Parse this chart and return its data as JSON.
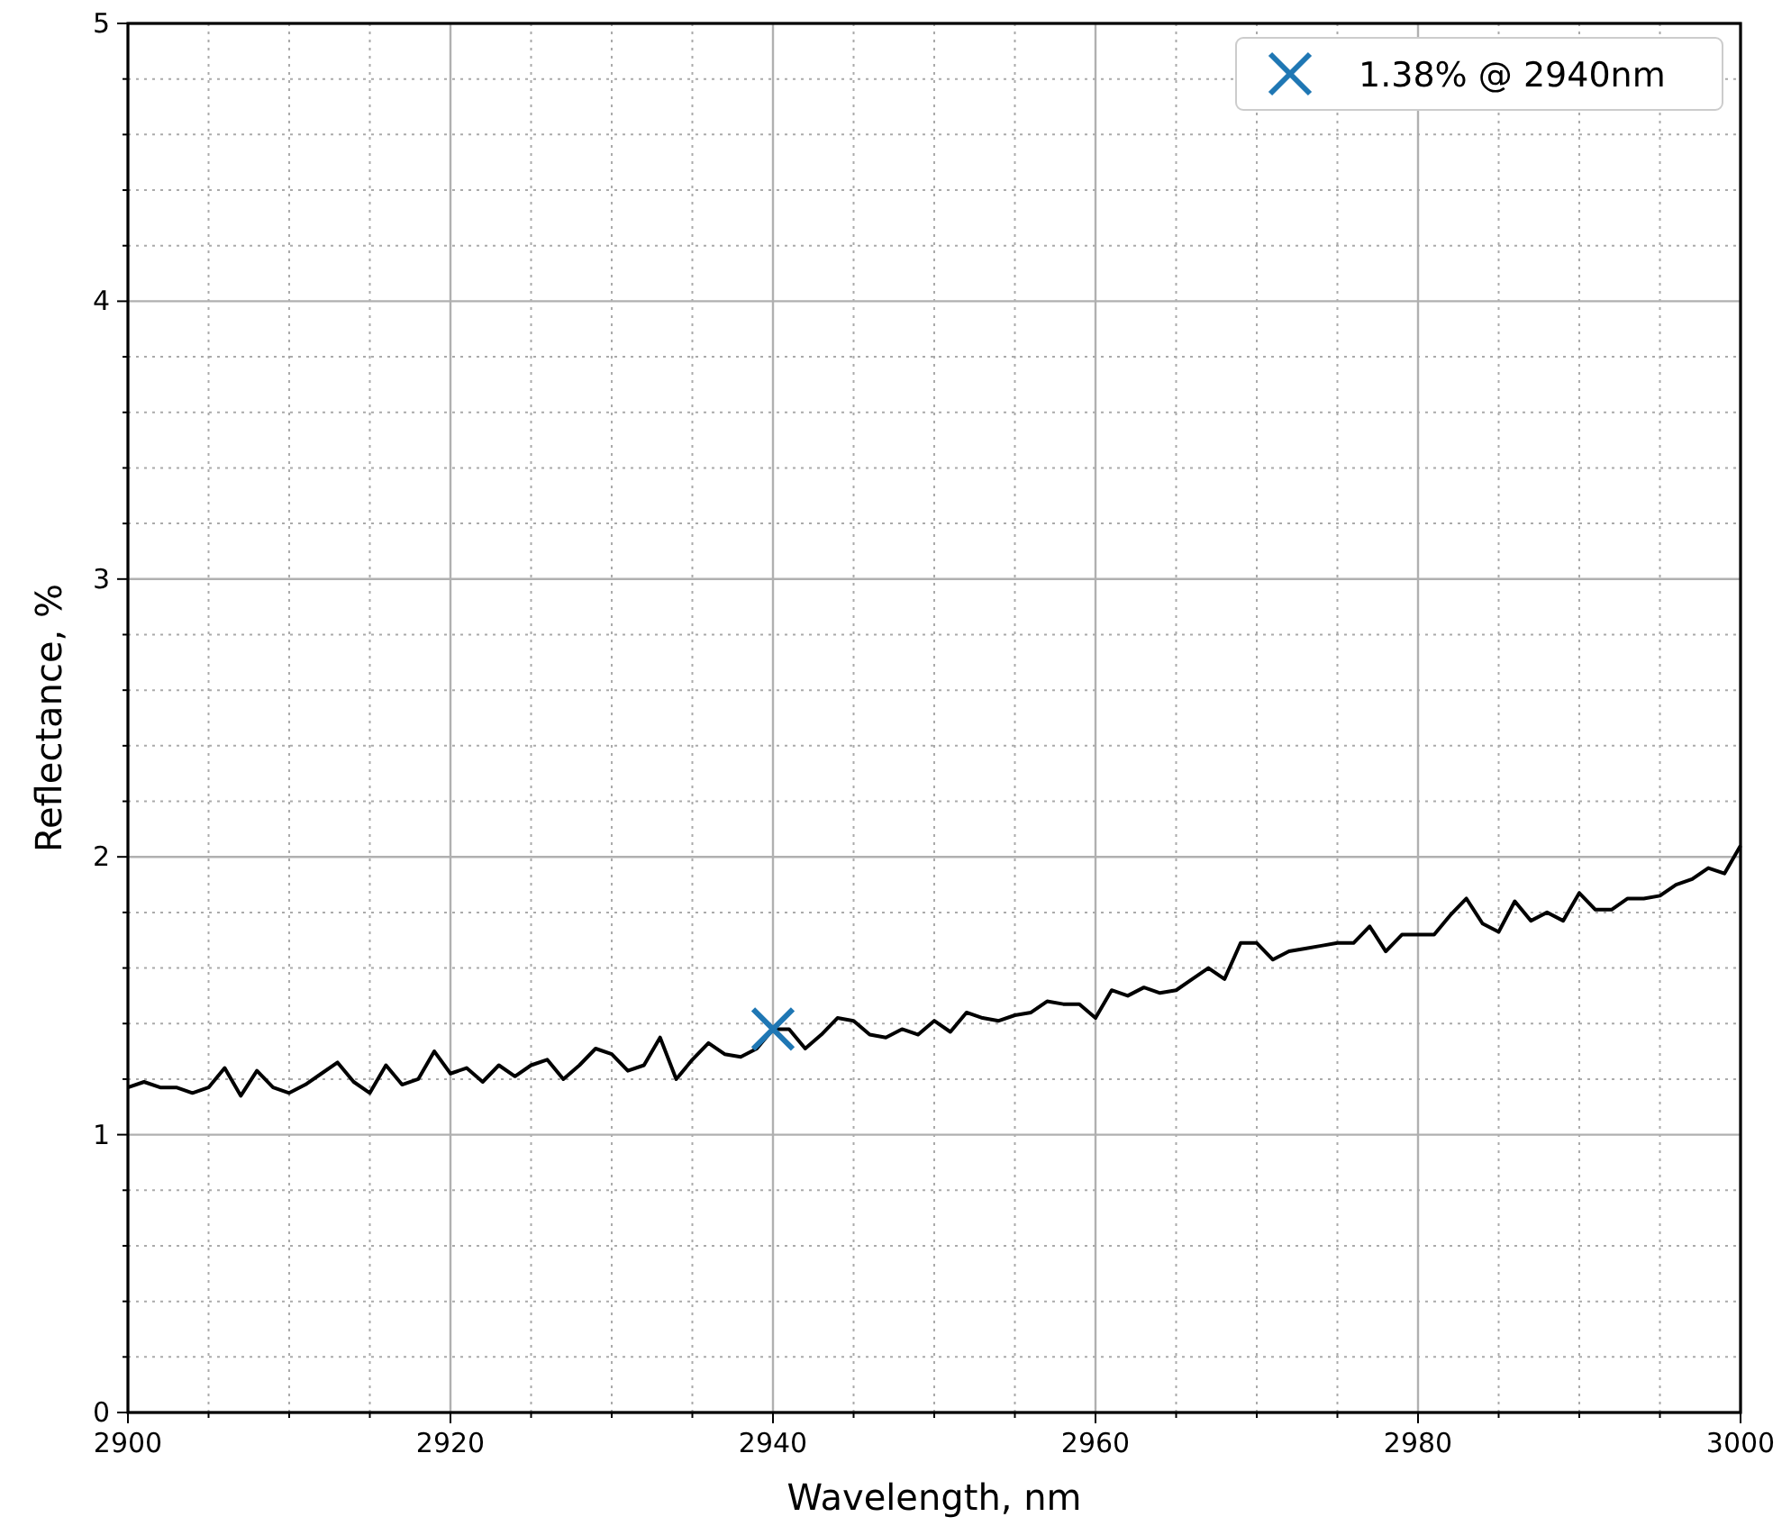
{
  "chart_data": {
    "type": "line",
    "xlabel": "Wavelength, nm",
    "ylabel": "Reflectance, %",
    "x": [
      2900,
      2901,
      2902,
      2903,
      2904,
      2905,
      2906,
      2907,
      2908,
      2909,
      2910,
      2911,
      2912,
      2913,
      2914,
      2915,
      2916,
      2917,
      2918,
      2919,
      2920,
      2921,
      2922,
      2923,
      2924,
      2925,
      2926,
      2927,
      2928,
      2929,
      2930,
      2931,
      2932,
      2933,
      2934,
      2935,
      2936,
      2937,
      2938,
      2939,
      2940,
      2941,
      2942,
      2943,
      2944,
      2945,
      2946,
      2947,
      2948,
      2949,
      2950,
      2951,
      2952,
      2953,
      2954,
      2955,
      2956,
      2957,
      2958,
      2959,
      2960,
      2961,
      2962,
      2963,
      2964,
      2965,
      2966,
      2967,
      2968,
      2969,
      2970,
      2971,
      2972,
      2973,
      2974,
      2975,
      2976,
      2977,
      2978,
      2979,
      2980,
      2981,
      2982,
      2983,
      2984,
      2985,
      2986,
      2987,
      2988,
      2989,
      2990,
      2991,
      2992,
      2993,
      2994,
      2995,
      2996,
      2997,
      2998,
      2999,
      3000
    ],
    "series": [
      {
        "type": "line",
        "color": "#000000",
        "marker": "none",
        "values": [
          1.17,
          1.19,
          1.17,
          1.17,
          1.15,
          1.17,
          1.24,
          1.14,
          1.23,
          1.17,
          1.15,
          1.18,
          1.22,
          1.26,
          1.19,
          1.15,
          1.25,
          1.18,
          1.2,
          1.3,
          1.22,
          1.24,
          1.19,
          1.25,
          1.21,
          1.25,
          1.27,
          1.2,
          1.25,
          1.31,
          1.29,
          1.23,
          1.25,
          1.35,
          1.2,
          1.27,
          1.33,
          1.29,
          1.28,
          1.31,
          1.38,
          1.38,
          1.31,
          1.36,
          1.42,
          1.41,
          1.36,
          1.35,
          1.38,
          1.36,
          1.41,
          1.37,
          1.44,
          1.42,
          1.41,
          1.43,
          1.44,
          1.48,
          1.47,
          1.47,
          1.42,
          1.52,
          1.5,
          1.53,
          1.51,
          1.52,
          1.56,
          1.6,
          1.56,
          1.69,
          1.69,
          1.63,
          1.66,
          1.67,
          1.68,
          1.69,
          1.69,
          1.75,
          1.66,
          1.72,
          1.72,
          1.72,
          1.79,
          1.85,
          1.76,
          1.73,
          1.84,
          1.77,
          1.8,
          1.77,
          1.87,
          1.81,
          1.81,
          1.85,
          1.85,
          1.86,
          1.9,
          1.92,
          1.96,
          1.94,
          2.04
        ]
      },
      {
        "type": "scatter",
        "name": "1.38% @ 2940nm",
        "color": "#1f77b4",
        "marker": "cross",
        "x": [
          2940
        ],
        "values": [
          1.38
        ]
      }
    ],
    "xlim": [
      2900,
      3000
    ],
    "xticks": [
      2900,
      {
        "value": 2905,
        "label": null
      },
      2920,
      {
        "value": 2910,
        "label": null
      },
      {
        "value": 2915,
        "label": null
      },
      {
        "value": 2925,
        "label": null
      },
      {
        "value": 2930,
        "label": null
      },
      {
        "value": 2935,
        "label": null
      },
      2940,
      {
        "value": 2945,
        "label": null
      },
      {
        "value": 2950,
        "label": null
      },
      {
        "value": 2955,
        "label": null
      },
      2960,
      {
        "value": 2965,
        "label": null
      },
      {
        "value": 2970,
        "label": null
      },
      {
        "value": 2975,
        "label": null
      },
      2980,
      {
        "value": 2985,
        "label": null
      },
      {
        "value": 2990,
        "label": null
      },
      {
        "value": 2995,
        "label": null
      },
      3000
    ],
    "ylim": [
      0,
      5
    ],
    "yticks": [
      0,
      {
        "value": 0.2,
        "label": null
      },
      {
        "value": 0.4,
        "label": null
      },
      {
        "value": 0.6,
        "label": null
      },
      {
        "value": 0.8,
        "label": null
      },
      1,
      {
        "value": 1.2,
        "label": null
      },
      {
        "value": 1.4,
        "label": null
      },
      {
        "value": 1.6,
        "label": null
      },
      {
        "value": 1.8,
        "label": null
      },
      2,
      {
        "value": 2.2,
        "label": null
      },
      {
        "value": 2.4,
        "label": null
      },
      {
        "value": 2.6,
        "label": null
      },
      {
        "value": 2.8,
        "label": null
      },
      3,
      {
        "value": 3.2,
        "label": null
      },
      {
        "value": 3.4,
        "label": null
      },
      {
        "value": 3.6,
        "label": null
      },
      {
        "value": 3.8,
        "label": null
      },
      4,
      {
        "value": 4.2,
        "label": null
      },
      {
        "value": 4.4,
        "label": null
      },
      {
        "value": 4.6,
        "label": null
      },
      {
        "value": 4.8,
        "label": null
      },
      5
    ],
    "grid": true,
    "legend": "top right"
  }
}
